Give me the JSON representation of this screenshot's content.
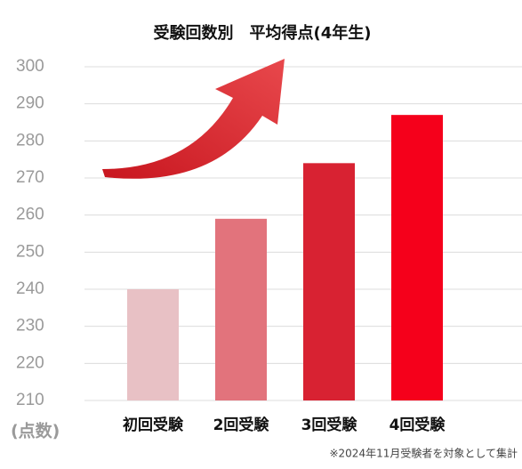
{
  "chart_data": {
    "type": "bar",
    "title": "受験回数別　平均得点(4年生)",
    "y_label": "(点数)",
    "note": "※2024年11月受験者を対象として集計",
    "categories": [
      "初回受験",
      "2回受験",
      "3回受験",
      "4回受験"
    ],
    "values": [
      240,
      259,
      274,
      287
    ],
    "colors": [
      "#e8c1c5",
      "#e2737c",
      "#d82232",
      "#f5001b"
    ],
    "ylim": [
      210,
      300
    ],
    "yticks": [
      210,
      220,
      230,
      240,
      250,
      260,
      270,
      280,
      290,
      300
    ],
    "grid": true
  }
}
